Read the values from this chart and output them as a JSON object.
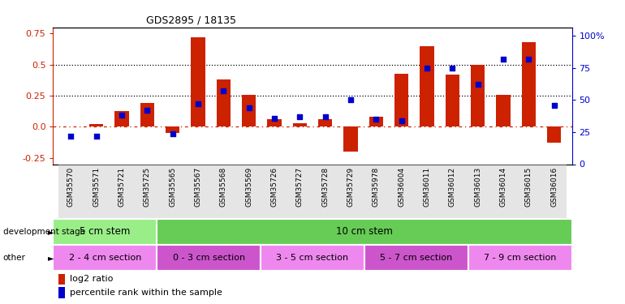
{
  "title": "GDS2895 / 18135",
  "samples": [
    "GSM35570",
    "GSM35571",
    "GSM35721",
    "GSM35725",
    "GSM35565",
    "GSM35567",
    "GSM35568",
    "GSM35569",
    "GSM35726",
    "GSM35727",
    "GSM35728",
    "GSM35729",
    "GSM35978",
    "GSM36004",
    "GSM36011",
    "GSM36012",
    "GSM36013",
    "GSM36014",
    "GSM36015",
    "GSM36016"
  ],
  "log2_ratio": [
    0.005,
    0.02,
    0.13,
    0.19,
    -0.05,
    0.72,
    0.38,
    0.26,
    0.065,
    0.03,
    0.065,
    -0.2,
    0.08,
    0.43,
    0.65,
    0.42,
    0.5,
    0.26,
    0.68,
    -0.13
  ],
  "percentile": [
    22,
    22,
    38,
    42,
    24,
    47,
    57,
    44,
    36,
    37,
    37,
    50,
    35,
    34,
    75,
    75,
    62,
    82,
    82,
    46
  ],
  "dev_stage_groups": [
    {
      "label": "5 cm stem",
      "start": 0,
      "end": 4,
      "color": "#99EE88"
    },
    {
      "label": "10 cm stem",
      "start": 4,
      "end": 20,
      "color": "#66CC55"
    }
  ],
  "other_groups": [
    {
      "label": "2 - 4 cm section",
      "start": 0,
      "end": 4,
      "color": "#EE88EE"
    },
    {
      "label": "0 - 3 cm section",
      "start": 4,
      "end": 8,
      "color": "#CC55CC"
    },
    {
      "label": "3 - 5 cm section",
      "start": 8,
      "end": 12,
      "color": "#EE88EE"
    },
    {
      "label": "5 - 7 cm section",
      "start": 12,
      "end": 16,
      "color": "#CC55CC"
    },
    {
      "label": "7 - 9 cm section",
      "start": 16,
      "end": 20,
      "color": "#EE88EE"
    }
  ],
  "bar_color": "#CC2200",
  "dot_color": "#0000CC",
  "ylim_left": [
    -0.3,
    0.8
  ],
  "ylim_right": [
    0,
    106.67
  ],
  "yticks_left": [
    -0.25,
    0.0,
    0.25,
    0.5,
    0.75
  ],
  "yticks_right": [
    0,
    25,
    50,
    75,
    100
  ],
  "hlines_dotted": [
    0.25,
    0.5
  ],
  "hline_dashdot": 0.0,
  "xticklabel_bg": "#DDDDDD",
  "bg_color": "#FFFFFF"
}
